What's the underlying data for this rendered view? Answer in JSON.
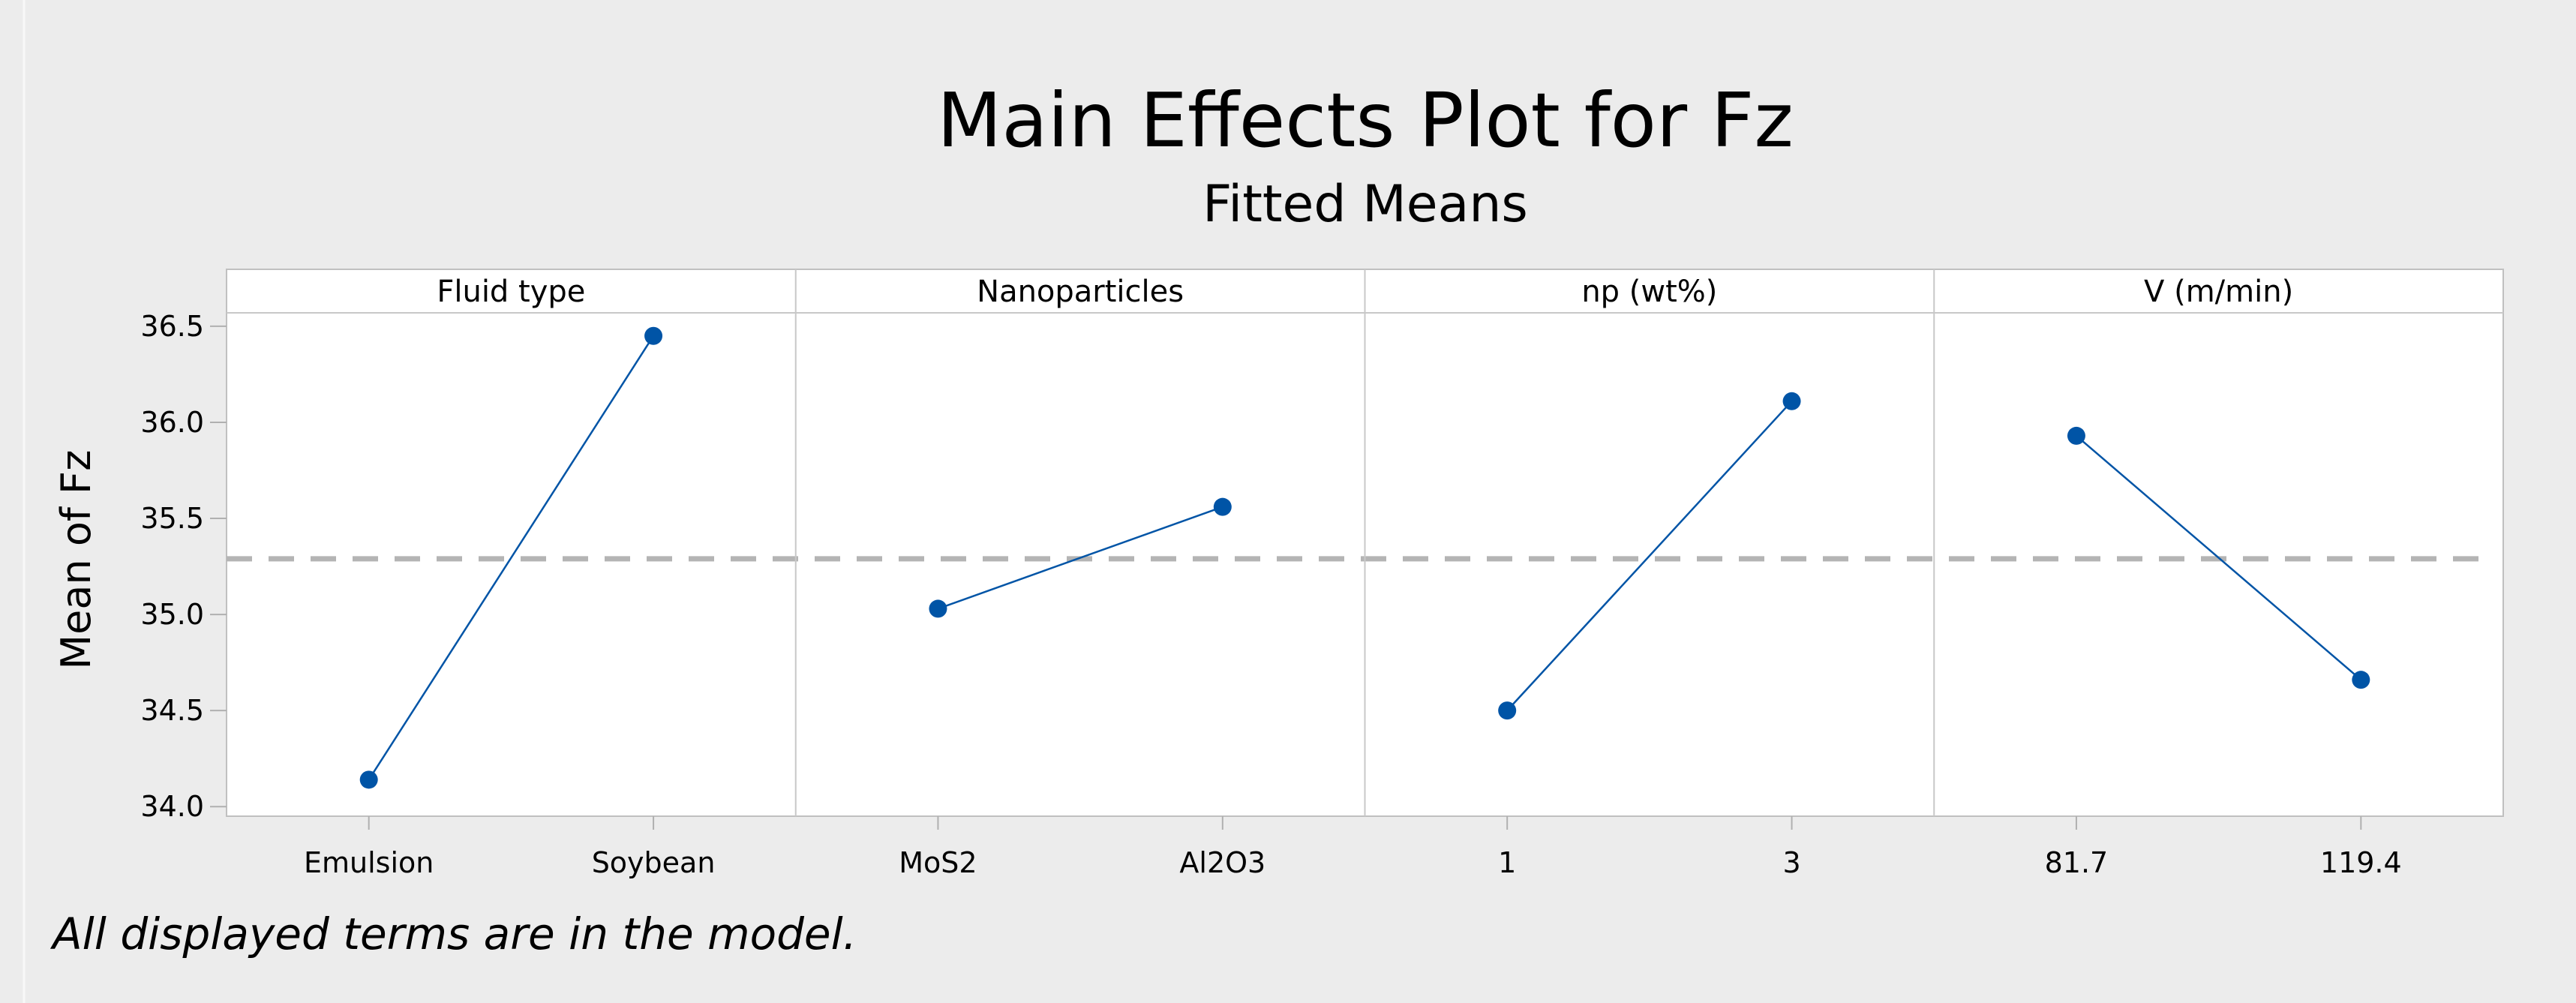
{
  "chart_data": {
    "type": "line",
    "title": "Main Effects Plot for Fz",
    "subtitle": "Fitted Means",
    "ylabel": "Mean of Fz",
    "ylim": [
      33.95,
      36.57
    ],
    "yticks": [
      34.0,
      34.5,
      35.0,
      35.5,
      36.0,
      36.5
    ],
    "ytick_labels": [
      "34.0",
      "34.5",
      "35.0",
      "35.5",
      "36.0",
      "36.5"
    ],
    "grand_mean": 35.29,
    "grid": false,
    "marker_color": "#0054a6",
    "line_color": "#0054a6",
    "mean_line_color": "#b4b4b4",
    "panels": [
      {
        "factor": "Fluid type",
        "levels": [
          "Emulsion",
          "Soybean"
        ],
        "values": [
          34.14,
          36.45
        ]
      },
      {
        "factor": "Nanoparticles",
        "levels": [
          "MoS2",
          "Al2O3"
        ],
        "values": [
          35.03,
          35.56
        ]
      },
      {
        "factor": "np (wt%)",
        "levels": [
          "1",
          "3"
        ],
        "values": [
          34.5,
          36.11
        ]
      },
      {
        "factor": "V (m/min)",
        "levels": [
          "81.7",
          "119.4"
        ],
        "values": [
          35.93,
          34.66
        ]
      }
    ],
    "footnote": "All displayed terms are in the model."
  }
}
